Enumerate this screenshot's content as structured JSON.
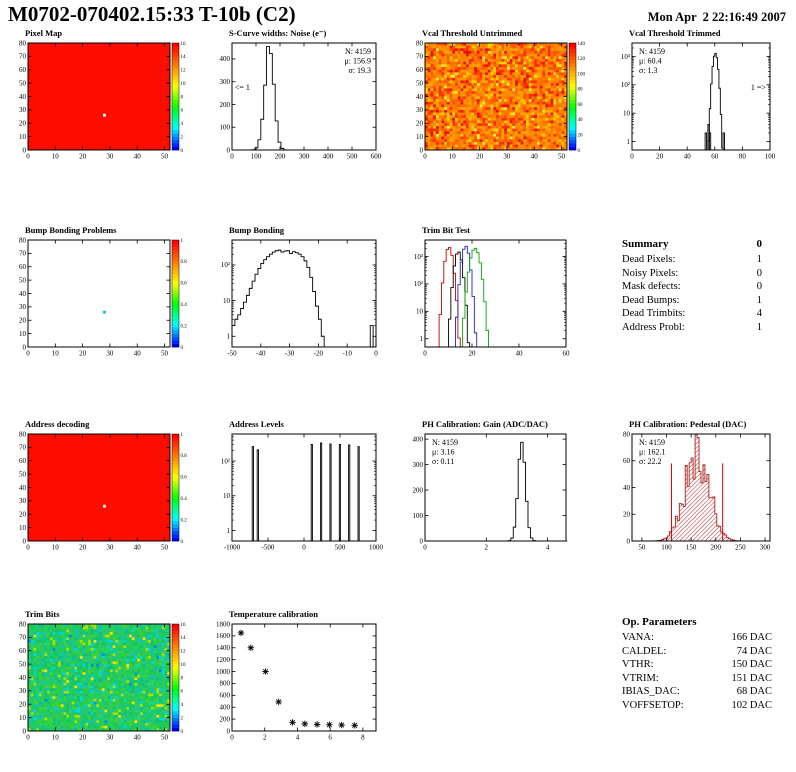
{
  "header": {
    "title": "M0702-070402.15:33 T-10b (C2)",
    "date": "Mon Apr  2 22:16:49 2007"
  },
  "summary": {
    "title": "Summary",
    "value": "0",
    "rows": [
      {
        "label": "Dead Pixels:",
        "value": "1"
      },
      {
        "label": "Noisy Pixels:",
        "value": "0"
      },
      {
        "label": "Mask defects:",
        "value": "0"
      },
      {
        "label": "Dead Bumps:",
        "value": "1"
      },
      {
        "label": "Dead Trimbits:",
        "value": "4"
      },
      {
        "label": "Address Probl:",
        "value": "1"
      }
    ]
  },
  "op_parameters": {
    "title": "Op. Parameters",
    "rows": [
      {
        "label": "VANA:",
        "value": "166 DAC"
      },
      {
        "label": "CALDEL:",
        "value": "74 DAC"
      },
      {
        "label": "VTHR:",
        "value": "150 DAC"
      },
      {
        "label": "VTRIM:",
        "value": "151 DAC"
      },
      {
        "label": "IBIAS_DAC:",
        "value": "68 DAC"
      },
      {
        "label": "VOFFSETOP:",
        "value": "102 DAC"
      }
    ]
  },
  "chart_data": [
    {
      "id": "pixel-map",
      "type": "heatmap",
      "title": "Pixel Map",
      "axes": {
        "xmin": 0,
        "xmax": 52,
        "xticks": [
          0,
          10,
          20,
          30,
          40,
          50
        ],
        "ymin": 0,
        "ymax": 80,
        "yticks": [
          0,
          10,
          20,
          30,
          40,
          50,
          60,
          70,
          80
        ]
      },
      "heatmap": {
        "mode": "flat",
        "base": "#fb0e00",
        "defects": [
          {
            "x": 28,
            "y": 26,
            "color": "#ffffff"
          }
        ]
      },
      "colorbar": {
        "labels": [
          "0",
          "2",
          "4",
          "6",
          "8",
          "10",
          "12",
          "14",
          "16"
        ]
      }
    },
    {
      "id": "scurve-noise",
      "type": "histogram",
      "title": "S-Curve widths: Noise (e⁻)",
      "axes": {
        "xmin": 0,
        "xmax": 600,
        "xticks": [
          0,
          100,
          200,
          300,
          400,
          500,
          600
        ],
        "ymin": 0,
        "ymax": 470,
        "yticks": [
          0,
          100,
          200,
          300,
          400
        ]
      },
      "series": [
        {
          "kind": "gauss",
          "color": "#000000",
          "center": 155,
          "sigma": 19,
          "peak": 455,
          "binWidth": 12,
          "noise": 0.08,
          "seed": 3
        }
      ],
      "stats": {
        "anchor": "tr",
        "lines": [
          {
            "text": "N: 4159",
            "color": "#000000"
          },
          {
            "text": "μ: 156.9",
            "color": "#000000"
          },
          {
            "text": "σ: 19.3",
            "color": "#000000"
          }
        ]
      },
      "annotations": [
        {
          "text": "<= 1",
          "fx": 0.02,
          "fy": 0.44,
          "anchor": "start"
        }
      ]
    },
    {
      "id": "vcal-threshold-untrimmed",
      "type": "heatmap",
      "title": "Vcal Threshold Untrimmed",
      "axes": {
        "xmin": 0,
        "xmax": 52,
        "xticks": [
          0,
          10,
          20,
          30,
          40,
          50
        ],
        "ymin": 0,
        "ymax": 80,
        "yticks": [
          0,
          10,
          20,
          30,
          40,
          50,
          60,
          70,
          80
        ]
      },
      "heatmap": {
        "mode": "noise",
        "seed": 7,
        "palette": [
          "#ff2e00",
          "#ff5200",
          "#ff6a00",
          "#ff7600",
          "#ff8200",
          "#ff8e00",
          "#ff9a00",
          "#ffa800"
        ],
        "speckles": [
          {
            "color": "#ffd400",
            "p": 0.07
          },
          {
            "color": "#ffef3a",
            "p": 0.02
          },
          {
            "color": "#e51400",
            "p": 0.06
          }
        ]
      },
      "colorbar": {
        "labels": [
          "0",
          "20",
          "40",
          "60",
          "80",
          "100",
          "120",
          "140"
        ]
      }
    },
    {
      "id": "vcal-threshold-trimmed",
      "type": "histogram",
      "title": "Vcal Threshold Trimmed",
      "axes": {
        "xmin": 0,
        "xmax": 100,
        "xticks": [
          0,
          20,
          40,
          60,
          80,
          100
        ],
        "ylog": true,
        "ymax": 3000,
        "ylogmin": 0.5,
        "ydecades": [
          1,
          10,
          100,
          1000
        ]
      },
      "series": [
        {
          "kind": "gauss",
          "color": "#000000",
          "center": 60.4,
          "sigma": 1.3,
          "peak": 1300,
          "binWidth": 1,
          "extraBins": [
            [
              53,
              2
            ],
            [
              55,
              4
            ],
            [
              56,
              2
            ],
            [
              66,
              2
            ]
          ]
        }
      ],
      "stats": {
        "anchor": "tl",
        "lines": [
          {
            "text": "N: 4159",
            "color": "#000000"
          },
          {
            "text": "μ: 60.4",
            "color": "#000000"
          },
          {
            "text": "σ: 1.3",
            "color": "#000000"
          }
        ]
      },
      "annotations": [
        {
          "text": "1 =>",
          "fx": 0.97,
          "fy": 0.44,
          "anchor": "end"
        }
      ]
    },
    {
      "id": "bump-bonding-problems",
      "type": "heatmap",
      "title": "Bump Bonding Problems",
      "axes": {
        "xmin": 0,
        "xmax": 52,
        "xticks": [
          0,
          10,
          20,
          30,
          40,
          50
        ],
        "ymin": 0,
        "ymax": 80,
        "yticks": [
          0,
          10,
          20,
          30,
          40,
          50,
          60,
          70,
          80
        ]
      },
      "heatmap": {
        "mode": "flat",
        "base": "#ffffff",
        "defects": [
          {
            "x": 28,
            "y": 26,
            "color": "#00cccc"
          }
        ]
      },
      "colorbar": {
        "labels": [
          "0",
          "0.2",
          "0.4",
          "0.6",
          "0.8",
          "1"
        ]
      }
    },
    {
      "id": "bump-bonding",
      "type": "histogram",
      "title": "Bump Bonding",
      "axes": {
        "xmin": -50,
        "xmax": 0,
        "xticks": [
          -50,
          -40,
          -30,
          -20,
          -10,
          0
        ],
        "ylog": true,
        "ymax": 500,
        "ylogmin": 0.5,
        "ydecades": [
          1,
          10,
          100
        ]
      },
      "series": [
        {
          "kind": "bins",
          "color": "#000000",
          "start": -50,
          "binWidth": 1,
          "heights": [
            2,
            3,
            4,
            6,
            9,
            14,
            22,
            35,
            55,
            80,
            110,
            140,
            170,
            200,
            230,
            250,
            260,
            230,
            245,
            250,
            210,
            235,
            220,
            200,
            170,
            130,
            85,
            45,
            18,
            7,
            3,
            1,
            0,
            0,
            0,
            0,
            0,
            0,
            0,
            0,
            0,
            0,
            0,
            0,
            0,
            0,
            0,
            0,
            2,
            0
          ]
        }
      ]
    },
    {
      "id": "trim-bit-test",
      "type": "histogram",
      "title": "Trim Bit Test",
      "axes": {
        "xmin": 0,
        "xmax": 60,
        "xticks": [
          0,
          20,
          40,
          60
        ],
        "ylog": true,
        "ymax": 4000,
        "ylogmin": 0.5,
        "ydecades": [
          1,
          10,
          100,
          1000
        ]
      },
      "series": [
        {
          "kind": "gauss",
          "color": "#cc0000",
          "center": 10.2,
          "sigma": 1.1,
          "peak": 2200,
          "binWidth": 1,
          "seed": 4
        },
        {
          "kind": "gauss",
          "color": "#000000",
          "center": 14.2,
          "sigma": 1.1,
          "peak": 1500,
          "binWidth": 1,
          "seed": 5
        },
        {
          "kind": "gauss",
          "color": "#2020cc",
          "center": 17.3,
          "sigma": 1.1,
          "peak": 2400,
          "binWidth": 1,
          "seed": 6
        },
        {
          "kind": "gauss",
          "color": "#00aa00",
          "center": 21.3,
          "sigma": 1.4,
          "peak": 2000,
          "binWidth": 1,
          "seed": 7
        }
      ]
    },
    {
      "id": "address-decoding",
      "type": "heatmap",
      "title": "Address decoding",
      "axes": {
        "xmin": 0,
        "xmax": 52,
        "xticks": [
          0,
          10,
          20,
          30,
          40,
          50
        ],
        "ymin": 0,
        "ymax": 80,
        "yticks": [
          0,
          10,
          20,
          30,
          40,
          50,
          60,
          70,
          80
        ]
      },
      "heatmap": {
        "mode": "flat",
        "base": "#fb0e00",
        "defects": [
          {
            "x": 28,
            "y": 26,
            "color": "#ffffff"
          }
        ]
      },
      "colorbar": {
        "labels": [
          "0",
          "0.2",
          "0.4",
          "0.6",
          "0.8",
          "1"
        ]
      }
    },
    {
      "id": "address-levels",
      "type": "histogram",
      "title": "Address Levels",
      "axes": {
        "xmin": -1000,
        "xmax": 1000,
        "xticks": [
          -1000,
          -500,
          0,
          500,
          1000
        ],
        "ylog": true,
        "ymax": 600,
        "ylogmin": 0.5,
        "ydecades": [
          1,
          10,
          100
        ]
      },
      "series": [
        {
          "kind": "spikes",
          "color": "#000000",
          "spikes": [
            [
              -720,
              260,
              18
            ],
            [
              -650,
              210,
              18
            ],
            [
              100,
              300,
              16
            ],
            [
              230,
              330,
              16
            ],
            [
              360,
              310,
              16
            ],
            [
              490,
              300,
              16
            ],
            [
              620,
              290,
              16
            ],
            [
              750,
              260,
              16
            ]
          ]
        }
      ]
    },
    {
      "id": "ph-calibration-gain",
      "type": "histogram",
      "title": "PH Calibration: Gain (ADC/DAC)",
      "axes": {
        "xmin": 0,
        "xmax": 4.6,
        "xticks": [
          0,
          2,
          4
        ],
        "ymin": 0,
        "ymax": 420,
        "yticks": [
          0,
          100,
          200,
          300,
          400
        ]
      },
      "series": [
        {
          "kind": "gauss",
          "color": "#000000",
          "center": 3.16,
          "sigma": 0.12,
          "peak": 395,
          "binWidth": 0.08,
          "noise": 0.05,
          "seed": 8
        }
      ],
      "stats": {
        "anchor": "tl",
        "lines": [
          {
            "text": "N: 4159",
            "color": "#000000"
          },
          {
            "text": "μ: 3.16",
            "color": "#000000"
          },
          {
            "text": "σ: 0.11",
            "color": "#000000"
          }
        ]
      }
    },
    {
      "id": "ph-calibration-pedestal",
      "type": "histogram",
      "title": "PH Calibration: Pedestal (DAC)",
      "axes": {
        "xmin": 30,
        "xmax": 310,
        "xticks": [
          50,
          100,
          150,
          200,
          250,
          300
        ],
        "ymin": 0,
        "ymax": 80,
        "yticks": [
          0,
          20,
          40,
          60,
          80
        ]
      },
      "series": [
        {
          "kind": "gauss",
          "color": "#a82020",
          "fill": "redhatch",
          "center": 162,
          "sigma": 24,
          "peak": 68,
          "binWidth": 4,
          "noise": 0.35,
          "seed": 9
        }
      ],
      "vlines": [
        {
          "x": 110,
          "y1": 0,
          "y2": 58,
          "color": "#cc0000"
        },
        {
          "x": 214,
          "y1": 0,
          "y2": 58,
          "color": "#cc0000"
        }
      ],
      "stats": {
        "anchor": "tl",
        "lines": [
          {
            "text": "N: 4159",
            "color": "#000000"
          },
          {
            "text": "μ: 162.1",
            "color": "#cc0000"
          },
          {
            "text": "σ: 22.2",
            "color": "#cc0000"
          }
        ]
      }
    },
    {
      "id": "trim-bits",
      "type": "heatmap",
      "title": "Trim Bits",
      "axes": {
        "xmin": 0,
        "xmax": 52,
        "xticks": [
          0,
          10,
          20,
          30,
          40,
          50
        ],
        "ymin": 0,
        "ymax": 80,
        "yticks": [
          0,
          10,
          20,
          30,
          40,
          50,
          60,
          70,
          80
        ]
      },
      "heatmap": {
        "mode": "noise",
        "seed": 13,
        "palette": [
          "#17c95e",
          "#1fd04d",
          "#2bc76b",
          "#12bf77",
          "#30cc44",
          "#1cc892",
          "#3dd23a",
          "#15c4a0"
        ],
        "speckles": [
          {
            "color": "#a8e000",
            "p": 0.05
          },
          {
            "color": "#00d8d8",
            "p": 0.05
          },
          {
            "color": "#ffe000",
            "p": 0.01
          },
          {
            "color": "#0090e0",
            "p": 0.01
          }
        ]
      },
      "colorbar": {
        "labels": [
          "0",
          "2",
          "4",
          "6",
          "8",
          "10",
          "12",
          "14",
          "16"
        ]
      }
    },
    {
      "id": "temperature-calibration",
      "type": "scatter",
      "title": "Temperature calibration",
      "axes": {
        "xmin": 0,
        "xmax": 8.8,
        "xticks": [
          0,
          2,
          4,
          6,
          8
        ],
        "ymin": 0,
        "ymax": 1800,
        "yticks": [
          0,
          200,
          400,
          600,
          800,
          1000,
          1200,
          1400,
          1600,
          1800
        ]
      },
      "series": [
        {
          "kind": "points",
          "color": "#000000",
          "marker": "asterisk",
          "points": [
            [
              0.55,
              1650
            ],
            [
              1.15,
              1400
            ],
            [
              2.05,
              1000
            ],
            [
              2.85,
              490
            ],
            [
              3.7,
              145
            ],
            [
              4.45,
              120
            ],
            [
              5.2,
              110
            ],
            [
              5.95,
              105
            ],
            [
              6.7,
              100
            ],
            [
              7.5,
              95
            ]
          ]
        }
      ]
    }
  ]
}
